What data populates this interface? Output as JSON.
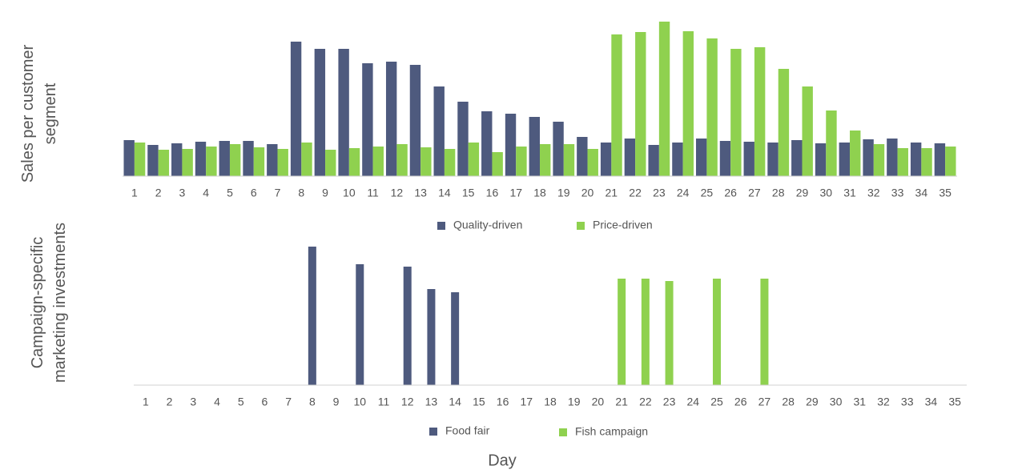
{
  "charts": [
    {
      "type": "bar",
      "y_label": "Sales per customer segment",
      "categories": [
        1,
        2,
        3,
        4,
        5,
        6,
        7,
        8,
        9,
        10,
        11,
        12,
        13,
        14,
        15,
        16,
        17,
        18,
        19,
        20,
        21,
        22,
        23,
        24,
        25,
        26,
        27,
        28,
        29,
        30,
        31,
        32,
        33,
        34,
        35
      ],
      "series": [
        {
          "name": "Quality-driven",
          "color": "#4e5a7e",
          "values": [
            45,
            39,
            41,
            43,
            44,
            44,
            40,
            168,
            159,
            159,
            141,
            143,
            139,
            112,
            93,
            81,
            78,
            74,
            68,
            49,
            42,
            47,
            39,
            42,
            47,
            44,
            43,
            42,
            45,
            41,
            42,
            46,
            47,
            42,
            41
          ]
        },
        {
          "name": "Price-driven",
          "color": "#8fd14f",
          "values": [
            42,
            33,
            34,
            37,
            40,
            36,
            34,
            42,
            33,
            35,
            37,
            40,
            36,
            34,
            42,
            30,
            37,
            40,
            40,
            34,
            177,
            180,
            193,
            181,
            172,
            159,
            161,
            134,
            112,
            82,
            57,
            40,
            35,
            35,
            37
          ]
        }
      ],
      "ylim": [
        0,
        200
      ]
    },
    {
      "type": "bar",
      "y_label": "Campaign-specific marketing investments",
      "x_label": "Day",
      "categories": [
        1,
        2,
        3,
        4,
        5,
        6,
        7,
        8,
        9,
        10,
        11,
        12,
        13,
        14,
        15,
        16,
        17,
        18,
        19,
        20,
        21,
        22,
        23,
        24,
        25,
        26,
        27,
        28,
        29,
        30,
        31,
        32,
        33,
        34,
        35
      ],
      "series": [
        {
          "name": "Food fair",
          "color": "#4e5a7e",
          "values": [
            null,
            null,
            null,
            null,
            null,
            null,
            null,
            173,
            null,
            151,
            null,
            148,
            120,
            116,
            null,
            null,
            null,
            null,
            null,
            null,
            null,
            null,
            null,
            null,
            null,
            null,
            null,
            null,
            null,
            null,
            null,
            null,
            null,
            null,
            null
          ]
        },
        {
          "name": "Fish campaign",
          "color": "#8fd14f",
          "values": [
            null,
            null,
            null,
            null,
            null,
            null,
            null,
            null,
            null,
            null,
            null,
            null,
            null,
            null,
            null,
            null,
            null,
            null,
            null,
            null,
            133,
            133,
            130,
            null,
            133,
            null,
            133,
            null,
            null,
            null,
            null,
            null,
            null,
            null,
            null
          ]
        }
      ],
      "ylim": [
        0,
        180
      ]
    }
  ]
}
